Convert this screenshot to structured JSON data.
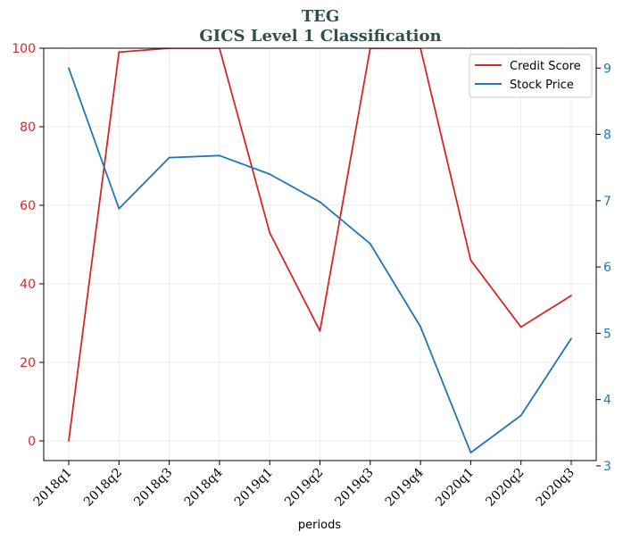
{
  "chart_data": {
    "type": "line",
    "title": "TEG",
    "subtitle": "GICS Level 1 Classification",
    "xlabel": "periods",
    "categories": [
      "2018q1",
      "2018q2",
      "2018q3",
      "2018q4",
      "2019q1",
      "2019q2",
      "2019q3",
      "2019q4",
      "2020q1",
      "2020q2",
      "2020q3"
    ],
    "left_axis": {
      "ylim": [
        -5,
        100
      ],
      "ticks": [
        "0",
        "20",
        "40",
        "60",
        "80",
        "100"
      ],
      "tick_values": [
        0,
        20,
        40,
        60,
        80,
        100
      ],
      "color": "#d62728"
    },
    "right_axis": {
      "ylim": [
        3.08,
        9.3
      ],
      "ticks": [
        "3",
        "4",
        "5",
        "6",
        "7",
        "8",
        "9"
      ],
      "tick_values": [
        3,
        4,
        5,
        6,
        7,
        8,
        9
      ],
      "color": "#1f77b4"
    },
    "series": [
      {
        "name": "Credit Score",
        "axis": "left",
        "color": "#d62728",
        "values": [
          0,
          99,
          100,
          100,
          53,
          28,
          100,
          100,
          46,
          29,
          37
        ]
      },
      {
        "name": "Stock Price",
        "axis": "right",
        "color": "#1f77b4",
        "values": [
          9.0,
          6.88,
          7.65,
          7.68,
          7.4,
          6.98,
          6.35,
          5.1,
          3.2,
          3.76,
          4.92
        ]
      }
    ],
    "grid": true,
    "legend_position": "top-right"
  }
}
